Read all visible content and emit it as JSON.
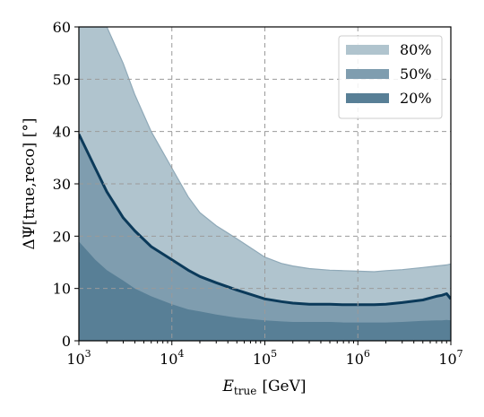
{
  "chart_data": {
    "type": "area",
    "xlabel_main": "E",
    "xlabel_sub": "true",
    "xlabel_unit": "[GeV]",
    "ylabel": "ΔΨ[true,reco] [°]",
    "x_scale": "log",
    "xlim": [
      1000,
      10000000
    ],
    "ylim": [
      0,
      60
    ],
    "grid": true,
    "legend_position": "top-right",
    "x_ticks": [
      {
        "value": 1000,
        "base": "10",
        "exp": "3"
      },
      {
        "value": 10000,
        "base": "10",
        "exp": "4"
      },
      {
        "value": 100000,
        "base": "10",
        "exp": "5"
      },
      {
        "value": 1000000,
        "base": "10",
        "exp": "6"
      },
      {
        "value": 10000000,
        "base": "10",
        "exp": "7"
      }
    ],
    "y_ticks": [
      {
        "value": 0,
        "label": "0"
      },
      {
        "value": 10,
        "label": "10"
      },
      {
        "value": 20,
        "label": "20"
      },
      {
        "value": 30,
        "label": "30"
      },
      {
        "value": 40,
        "label": "40"
      },
      {
        "value": 50,
        "label": "50"
      },
      {
        "value": 60,
        "label": "60"
      }
    ],
    "x": [
      1000,
      1500,
      2000,
      3000,
      4000,
      6000,
      10000,
      15000,
      20000,
      30000,
      50000,
      100000,
      150000,
      200000,
      300000,
      500000,
      700000,
      1000000,
      1500000,
      2000000,
      3000000,
      5000000,
      7000000,
      8000000,
      9000000,
      10000000
    ],
    "series": [
      {
        "name": "80%",
        "color": "#b0c4ce",
        "lower": [
          0,
          0,
          0,
          0,
          0,
          0,
          0,
          0,
          0,
          0,
          0,
          0,
          0,
          0,
          0,
          0,
          0,
          0,
          0,
          0,
          0,
          0,
          0,
          0,
          0,
          0
        ],
        "upper": [
          60,
          60,
          60,
          53,
          47,
          40,
          33,
          27.5,
          24.5,
          22,
          19.5,
          16,
          14.8,
          14.3,
          13.8,
          13.5,
          13.4,
          13.3,
          13.2,
          13.4,
          13.6,
          14,
          14.3,
          14.4,
          14.5,
          14.7
        ]
      },
      {
        "name": "50%",
        "color": "#7f9daf",
        "lower": [
          0,
          0,
          0,
          0,
          0,
          0,
          0,
          0,
          0,
          0,
          0,
          0,
          0,
          0,
          0,
          0,
          0,
          0,
          0,
          0,
          0,
          0,
          0,
          0,
          0,
          0
        ],
        "upper": [
          39.5,
          33,
          28.5,
          23.5,
          21,
          18,
          15.5,
          13.5,
          12.3,
          11.1,
          9.7,
          8,
          7.5,
          7.2,
          7,
          7,
          6.9,
          6.9,
          6.9,
          7,
          7.3,
          7.8,
          8.5,
          8.7,
          9,
          8
        ]
      },
      {
        "name": "20%",
        "color": "#587f96",
        "lower": [
          0,
          0,
          0,
          0,
          0,
          0,
          0,
          0,
          0,
          0,
          0,
          0,
          0,
          0,
          0,
          0,
          0,
          0,
          0,
          0,
          0,
          0,
          0,
          0,
          0,
          0
        ],
        "upper": [
          19,
          15.5,
          13.5,
          11.5,
          10,
          8.5,
          7,
          6,
          5.6,
          5,
          4.4,
          3.9,
          3.7,
          3.6,
          3.6,
          3.6,
          3.5,
          3.5,
          3.5,
          3.5,
          3.6,
          3.8,
          3.9,
          3.9,
          4,
          3.9
        ]
      }
    ],
    "median_line": {
      "color": "#0b3a5a",
      "values": [
        39.5,
        33,
        28.5,
        23.5,
        21,
        18,
        15.5,
        13.5,
        12.3,
        11.1,
        9.7,
        8,
        7.5,
        7.2,
        7,
        7,
        6.9,
        6.9,
        6.9,
        7,
        7.3,
        7.8,
        8.5,
        8.7,
        9,
        8
      ]
    }
  }
}
